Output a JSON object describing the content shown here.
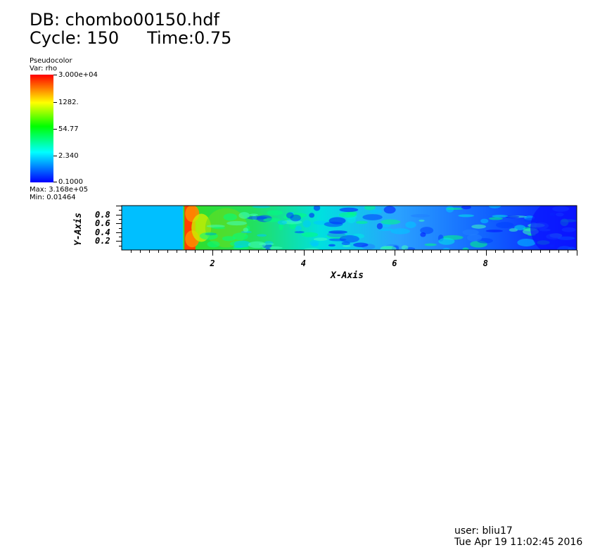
{
  "header": {
    "db": "DB: chombo00150.hdf",
    "cycle": "Cycle: 150",
    "time": "Time:0.75"
  },
  "legend": {
    "plot_type": "Pseudocolor",
    "var": "Var: rho",
    "ticks": [
      "3.000e+04",
      "1282.",
      "54.77",
      "2.340",
      "0.1000"
    ],
    "max": "Max:  3.168e+05",
    "min": "Min:  0.01464",
    "colors": [
      "#0000ff",
      "#00ffff",
      "#00ff00",
      "#ffff00",
      "#ff0000"
    ]
  },
  "plot": {
    "x_axis_title": "X-Axis",
    "y_axis_title": "Y-Axis",
    "x_range": [
      0,
      10
    ],
    "y_range": [
      0,
      1
    ],
    "x_ticks": [
      2,
      4,
      6,
      8
    ],
    "y_ticks": [
      0.2,
      0.4,
      0.6,
      0.8
    ],
    "x_tick_labels": [
      "2",
      "4",
      "6",
      "8"
    ],
    "y_tick_labels": [
      "0.2",
      "0.4",
      "0.6",
      "0.8"
    ],
    "field_colors": {
      "ambient": "#00bfff",
      "shock_front": "#ff4000",
      "post_shock": "#33dd22",
      "mixing": "#00e0e0",
      "low_density": "#0a14ff"
    }
  },
  "footer": {
    "user": "user: bliu17",
    "date": "Tue Apr 19 11:02:45 2016"
  }
}
